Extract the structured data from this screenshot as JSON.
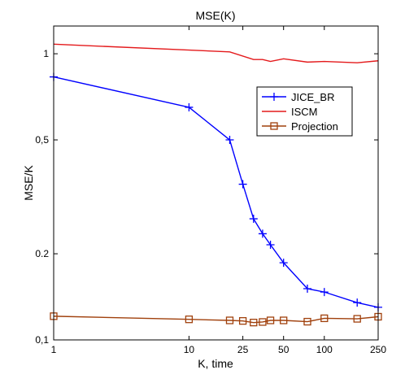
{
  "chart_data": {
    "type": "line",
    "title": "MSE(K)",
    "xlabel": "K, time",
    "ylabel": "MSE/K",
    "xscale": "log",
    "yscale": "log",
    "xlim": [
      1,
      250
    ],
    "ylim": [
      0.1,
      1.25
    ],
    "grid": false,
    "legend_position": "top-right",
    "x_ticks": [
      {
        "value": 1,
        "label": "1"
      },
      {
        "value": 10,
        "label": "10"
      },
      {
        "value": 25,
        "label": "25"
      },
      {
        "value": 50,
        "label": "50"
      },
      {
        "value": 100,
        "label": "100"
      },
      {
        "value": 250,
        "label": "250"
      }
    ],
    "y_ticks": [
      {
        "value": 0.1,
        "label": "0,1"
      },
      {
        "value": 0.2,
        "label": "0.2"
      },
      {
        "value": 0.5,
        "label": "0,5"
      },
      {
        "value": 1,
        "label": "1"
      }
    ],
    "series": [
      {
        "name": "JICE_BR",
        "color": "#0000ff",
        "marker": "plus",
        "x": [
          1,
          10,
          20,
          25,
          30,
          35,
          40,
          50,
          75,
          100,
          175,
          250
        ],
        "y": [
          0.83,
          0.65,
          0.5,
          0.35,
          0.265,
          0.235,
          0.215,
          0.186,
          0.151,
          0.147,
          0.135,
          0.13
        ]
      },
      {
        "name": "ISCM",
        "color": "#e41a1c",
        "marker": "none",
        "x": [
          1,
          10,
          20,
          30,
          35,
          40,
          50,
          75,
          100,
          175,
          250
        ],
        "y": [
          1.08,
          1.03,
          1.015,
          0.955,
          0.955,
          0.94,
          0.96,
          0.935,
          0.94,
          0.93,
          0.945
        ]
      },
      {
        "name": "Projection",
        "color": "#a0400c",
        "marker": "square",
        "x": [
          1,
          10,
          20,
          25,
          30,
          35,
          40,
          50,
          75,
          100,
          175,
          250
        ],
        "y": [
          0.121,
          0.118,
          0.117,
          0.1165,
          0.115,
          0.1155,
          0.117,
          0.117,
          0.1158,
          0.119,
          0.1185,
          0.1205
        ]
      }
    ]
  }
}
